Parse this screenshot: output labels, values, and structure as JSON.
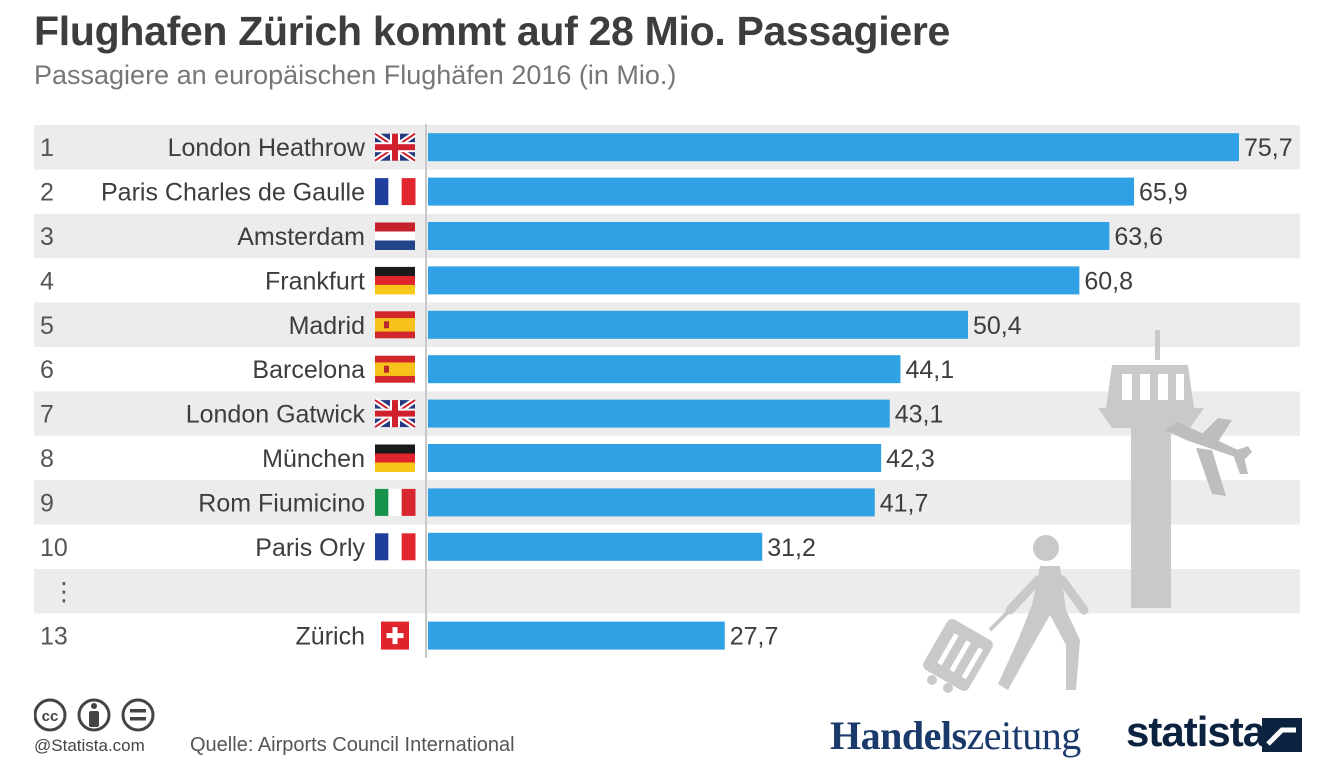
{
  "title": "Flughafen Zürich kommt auf 28 Mio. Passagiere",
  "subtitle": "Passagiere an europäischen Flughäfen 2016 (in Mio.)",
  "chart_data": {
    "type": "bar",
    "orientation": "horizontal",
    "xlim": [
      0,
      80
    ],
    "bar_color": "#2fa1e4",
    "rows": [
      {
        "rank": "1",
        "name": "London Heathrow",
        "flag": "gb-flag",
        "value": 75.7,
        "label": "75,7"
      },
      {
        "rank": "2",
        "name": "Paris Charles de Gaulle",
        "flag": "fr-flag",
        "value": 65.9,
        "label": "65,9"
      },
      {
        "rank": "3",
        "name": "Amsterdam",
        "flag": "nl-flag",
        "value": 63.6,
        "label": "63,6"
      },
      {
        "rank": "4",
        "name": "Frankfurt",
        "flag": "de-flag",
        "value": 60.8,
        "label": "60,8"
      },
      {
        "rank": "5",
        "name": "Madrid",
        "flag": "es-flag",
        "value": 50.4,
        "label": "50,4"
      },
      {
        "rank": "6",
        "name": "Barcelona",
        "flag": "es-flag",
        "value": 44.1,
        "label": "44,1"
      },
      {
        "rank": "7",
        "name": "London Gatwick",
        "flag": "gb-flag",
        "value": 43.1,
        "label": "43,1"
      },
      {
        "rank": "8",
        "name": "München",
        "flag": "de-flag",
        "value": 42.3,
        "label": "42,3"
      },
      {
        "rank": "9",
        "name": "Rom Fiumicino",
        "flag": "it-flag",
        "value": 41.7,
        "label": "41,7"
      },
      {
        "rank": "10",
        "name": "Paris Orly",
        "flag": "fr-flag",
        "value": 31.2,
        "label": "31,2"
      },
      {
        "rank": "⋮",
        "gap": true
      },
      {
        "rank": "13",
        "name": "Zürich",
        "flag": "ch-flag",
        "value": 27.7,
        "label": "27,7"
      }
    ]
  },
  "footer": {
    "credit": "@Statista.com",
    "source": "Quelle: Airports Council International",
    "logo_hz_part1": "Handels",
    "logo_hz_part2": "zeitung",
    "logo_statista": "statista",
    "cc_icons": [
      "cc-icon",
      "by-icon",
      "nd-icon"
    ]
  }
}
